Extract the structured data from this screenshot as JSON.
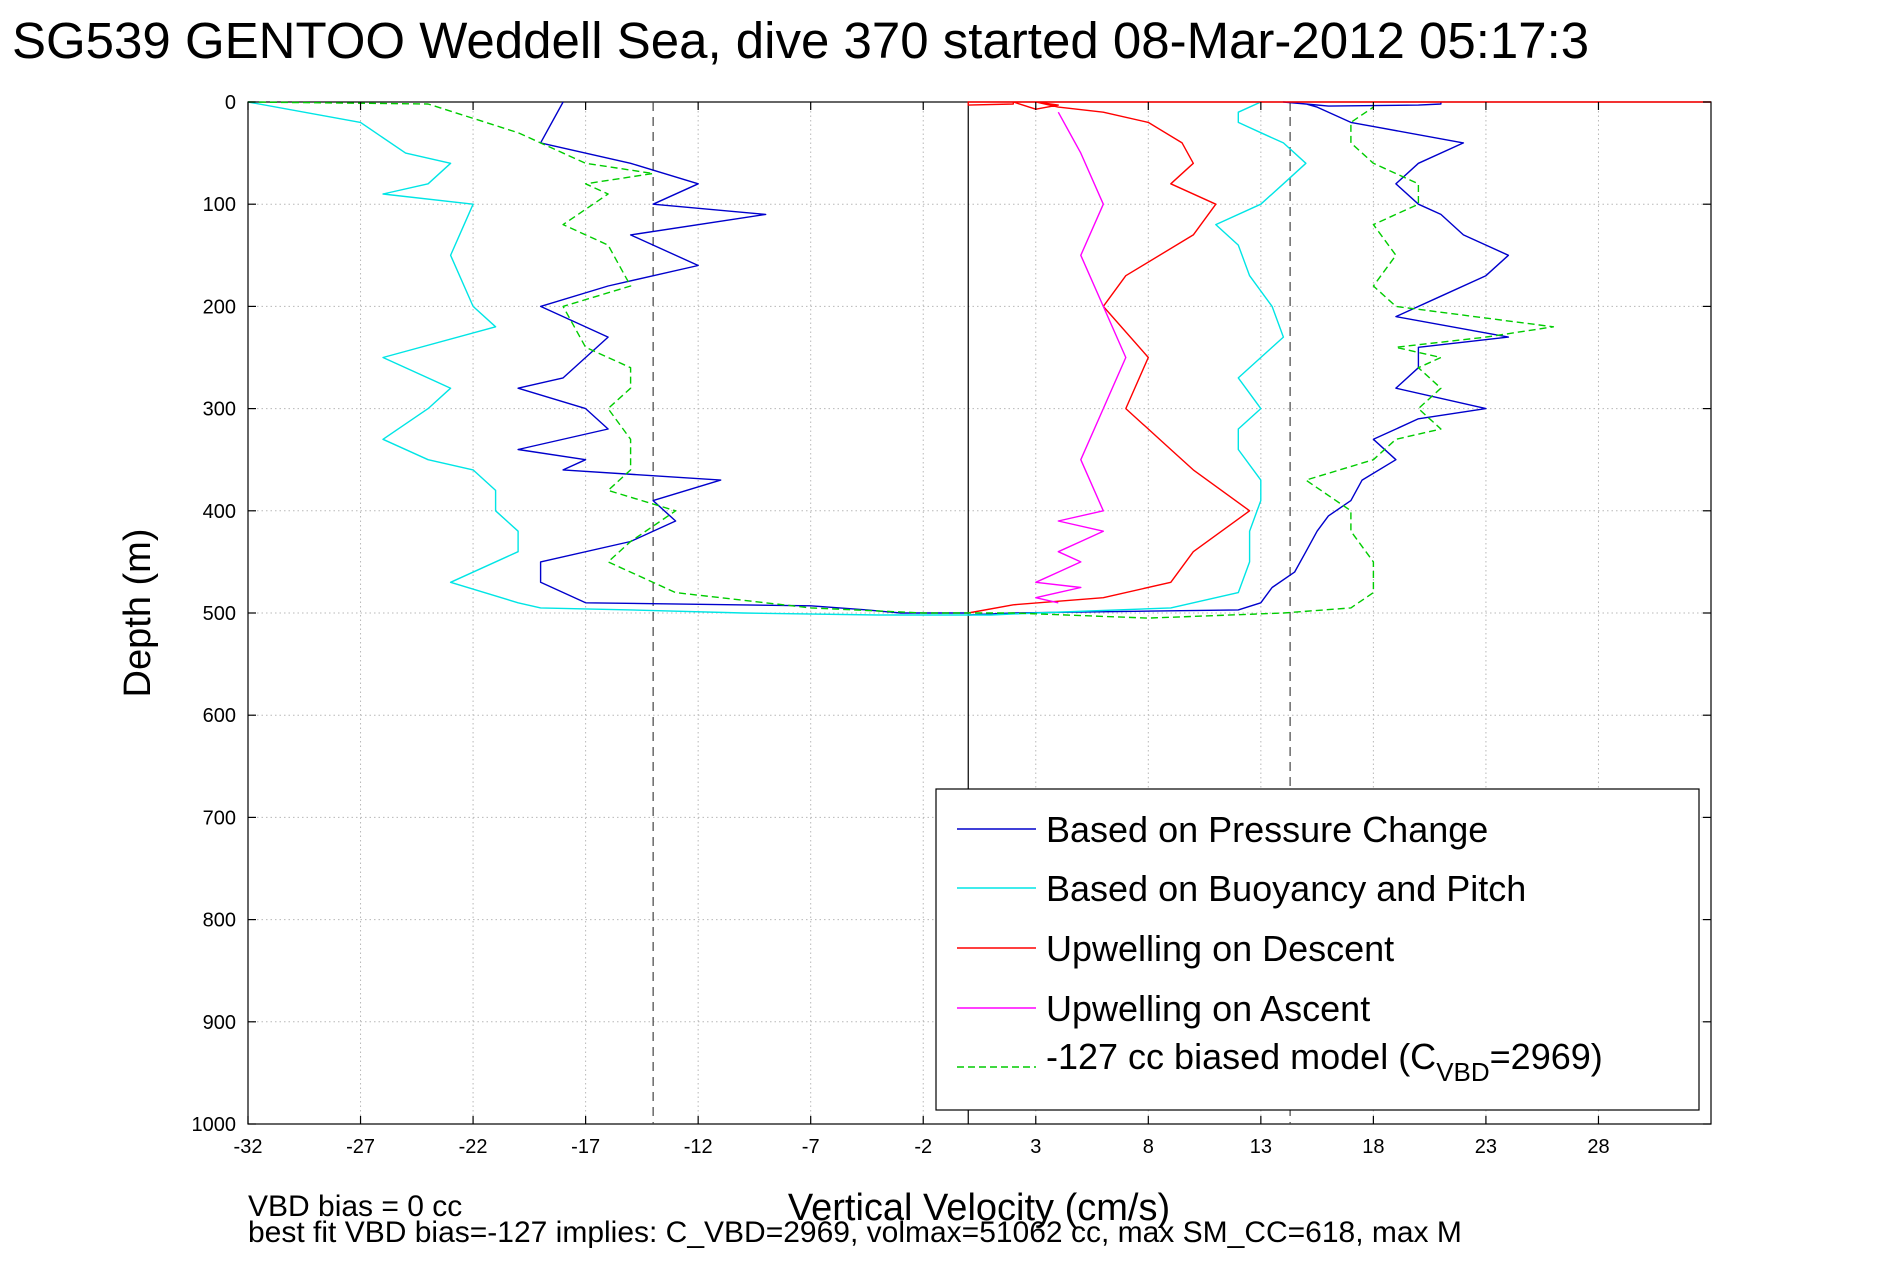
{
  "chart_data": {
    "type": "line",
    "title": "SG539 GENTOO Weddell Sea, dive 370 started 08-Mar-2012 05:17:3",
    "xlabel": "Vertical Velocity (cm/s)",
    "ylabel": "Depth (m)",
    "xlim": [
      -32,
      33
    ],
    "ylim": [
      0,
      1000
    ],
    "y_reversed": true,
    "grid": true,
    "x_ticks": [
      "-32",
      "-27",
      "-22",
      "-17",
      "-12",
      "-7",
      "-2",
      "3",
      "8",
      "13",
      "18",
      "23",
      "28"
    ],
    "y_ticks": [
      "0",
      "100",
      "200",
      "300",
      "400",
      "500",
      "600",
      "700",
      "800",
      "900",
      "1000"
    ],
    "reference_lines": [
      {
        "x": -14,
        "style": "dashed"
      },
      {
        "x": 0,
        "style": "solid"
      },
      {
        "x": 14.3,
        "style": "dashed"
      }
    ],
    "legend_location": "bottom-right",
    "legend_entries": [
      "Based on Pressure Change",
      "Based on Buoyancy and Pitch",
      "Upwelling on Descent",
      "Upwelling on Ascent",
      "-127 cc biased model (C",
      "VBD",
      "=2969)"
    ],
    "notes": [
      "VBD bias = 0 cc",
      "best fit VBD bias=-127 implies: C_VBD=2969, volmax=51062 cc, max SM_CC=618, max M"
    ],
    "series": [
      {
        "name": "Based on Pressure Change",
        "color": "#0000cc",
        "style": "solid",
        "x": [
          -18,
          -19,
          -15,
          -12,
          -14,
          -9,
          -15,
          -12,
          -16,
          -19,
          -16,
          -17,
          -18,
          -20,
          -17,
          -16,
          -20,
          -17,
          -18,
          -11,
          -14,
          -13,
          -15,
          -19,
          -19,
          -17,
          -7,
          -4.5,
          -3,
          -1,
          0,
          0,
          2,
          12,
          13,
          13.5,
          14.5,
          15,
          15.5,
          16,
          17,
          17.5,
          19,
          18,
          20,
          23,
          19,
          20,
          20,
          24,
          19,
          21,
          23,
          24,
          22,
          21,
          20,
          19,
          20,
          22,
          17,
          15.5,
          15,
          14,
          15,
          16,
          20,
          21,
          21,
          21
        ],
        "y": [
          0,
          40,
          60,
          80,
          100,
          110,
          130,
          160,
          180,
          200,
          230,
          250,
          270,
          280,
          300,
          320,
          340,
          350,
          360,
          370,
          390,
          410,
          430,
          450,
          470,
          490,
          493,
          497,
          500,
          500,
          500,
          502,
          500,
          497,
          490,
          475,
          460,
          440,
          420,
          405,
          390,
          370,
          350,
          330,
          310,
          300,
          280,
          260,
          240,
          230,
          210,
          190,
          170,
          150,
          130,
          110,
          100,
          80,
          60,
          40,
          20,
          5,
          2,
          0,
          2,
          4,
          3,
          2,
          1,
          0
        ]
      },
      {
        "name": "Based on Buoyancy and Pitch",
        "color": "#00e5e5",
        "style": "solid",
        "x": [
          -32,
          -27,
          -25,
          -23,
          -24,
          -26,
          -22,
          -23,
          -22,
          -21,
          -26,
          -23,
          -24,
          -26,
          -24,
          -22,
          -21,
          -21,
          -20,
          -20,
          -23,
          -20,
          -19,
          -15,
          -10,
          -4,
          1,
          3,
          9,
          12,
          12.5,
          12.5,
          13,
          13,
          12,
          12,
          13,
          12,
          13,
          14,
          13.5,
          12.5,
          12,
          11,
          13,
          14,
          15,
          14,
          13,
          12,
          12,
          13
        ],
        "y": [
          0,
          20,
          50,
          60,
          80,
          90,
          100,
          150,
          200,
          220,
          250,
          280,
          300,
          330,
          350,
          360,
          380,
          400,
          420,
          440,
          470,
          490,
          495,
          497,
          500,
          502,
          502,
          500,
          495,
          480,
          450,
          420,
          390,
          370,
          340,
          320,
          300,
          270,
          250,
          230,
          200,
          170,
          140,
          120,
          100,
          80,
          60,
          40,
          30,
          20,
          10,
          0
        ]
      },
      {
        "name": "Upwelling on Descent",
        "color": "#ff0000",
        "style": "solid",
        "x": [
          0,
          2,
          6,
          9,
          10,
          12.5,
          10,
          9,
          7,
          8,
          6,
          7,
          10,
          11,
          9,
          10,
          9.5,
          8,
          6,
          4,
          3,
          4,
          3,
          2,
          2,
          0,
          0,
          33
        ],
        "y": [
          500,
          492,
          485,
          470,
          440,
          400,
          360,
          340,
          300,
          250,
          200,
          170,
          130,
          100,
          80,
          60,
          40,
          20,
          10,
          5,
          0,
          3,
          7,
          0,
          2,
          3,
          0,
          0
        ]
      },
      {
        "name": "Upwelling on Ascent",
        "color": "#ff00ff",
        "style": "solid",
        "x": [
          4,
          5,
          6,
          5,
          6,
          7,
          6,
          5,
          6,
          4,
          6,
          5,
          4,
          5,
          4,
          3,
          5,
          4,
          3,
          4
        ],
        "y": [
          10,
          50,
          100,
          150,
          200,
          250,
          300,
          350,
          400,
          410,
          420,
          430,
          440,
          450,
          460,
          470,
          475,
          480,
          485,
          490
        ]
      },
      {
        "name": "",
        "color": "#00cc00",
        "style": "dashed",
        "x": [
          -32,
          -24,
          -20,
          -17,
          -14,
          -17,
          -16,
          -18,
          -16,
          -15,
          -18,
          -17,
          -15,
          -15,
          -16,
          -15,
          -15,
          -16,
          -13,
          -15,
          -16,
          -13,
          -7,
          -2,
          2,
          8,
          14,
          17,
          18,
          18,
          17,
          17,
          15,
          18,
          19,
          21,
          20,
          21,
          20,
          21,
          19,
          23,
          26,
          19,
          18,
          19,
          18,
          20,
          20,
          18,
          17,
          17,
          18
        ],
        "y": [
          0,
          2,
          30,
          60,
          70,
          80,
          90,
          120,
          140,
          180,
          200,
          240,
          260,
          280,
          300,
          330,
          360,
          380,
          400,
          430,
          450,
          480,
          495,
          500,
          500,
          505,
          500,
          495,
          480,
          450,
          420,
          400,
          370,
          350,
          330,
          320,
          300,
          280,
          260,
          250,
          240,
          230,
          220,
          200,
          180,
          150,
          120,
          100,
          80,
          60,
          40,
          20,
          5
        ]
      }
    ]
  }
}
